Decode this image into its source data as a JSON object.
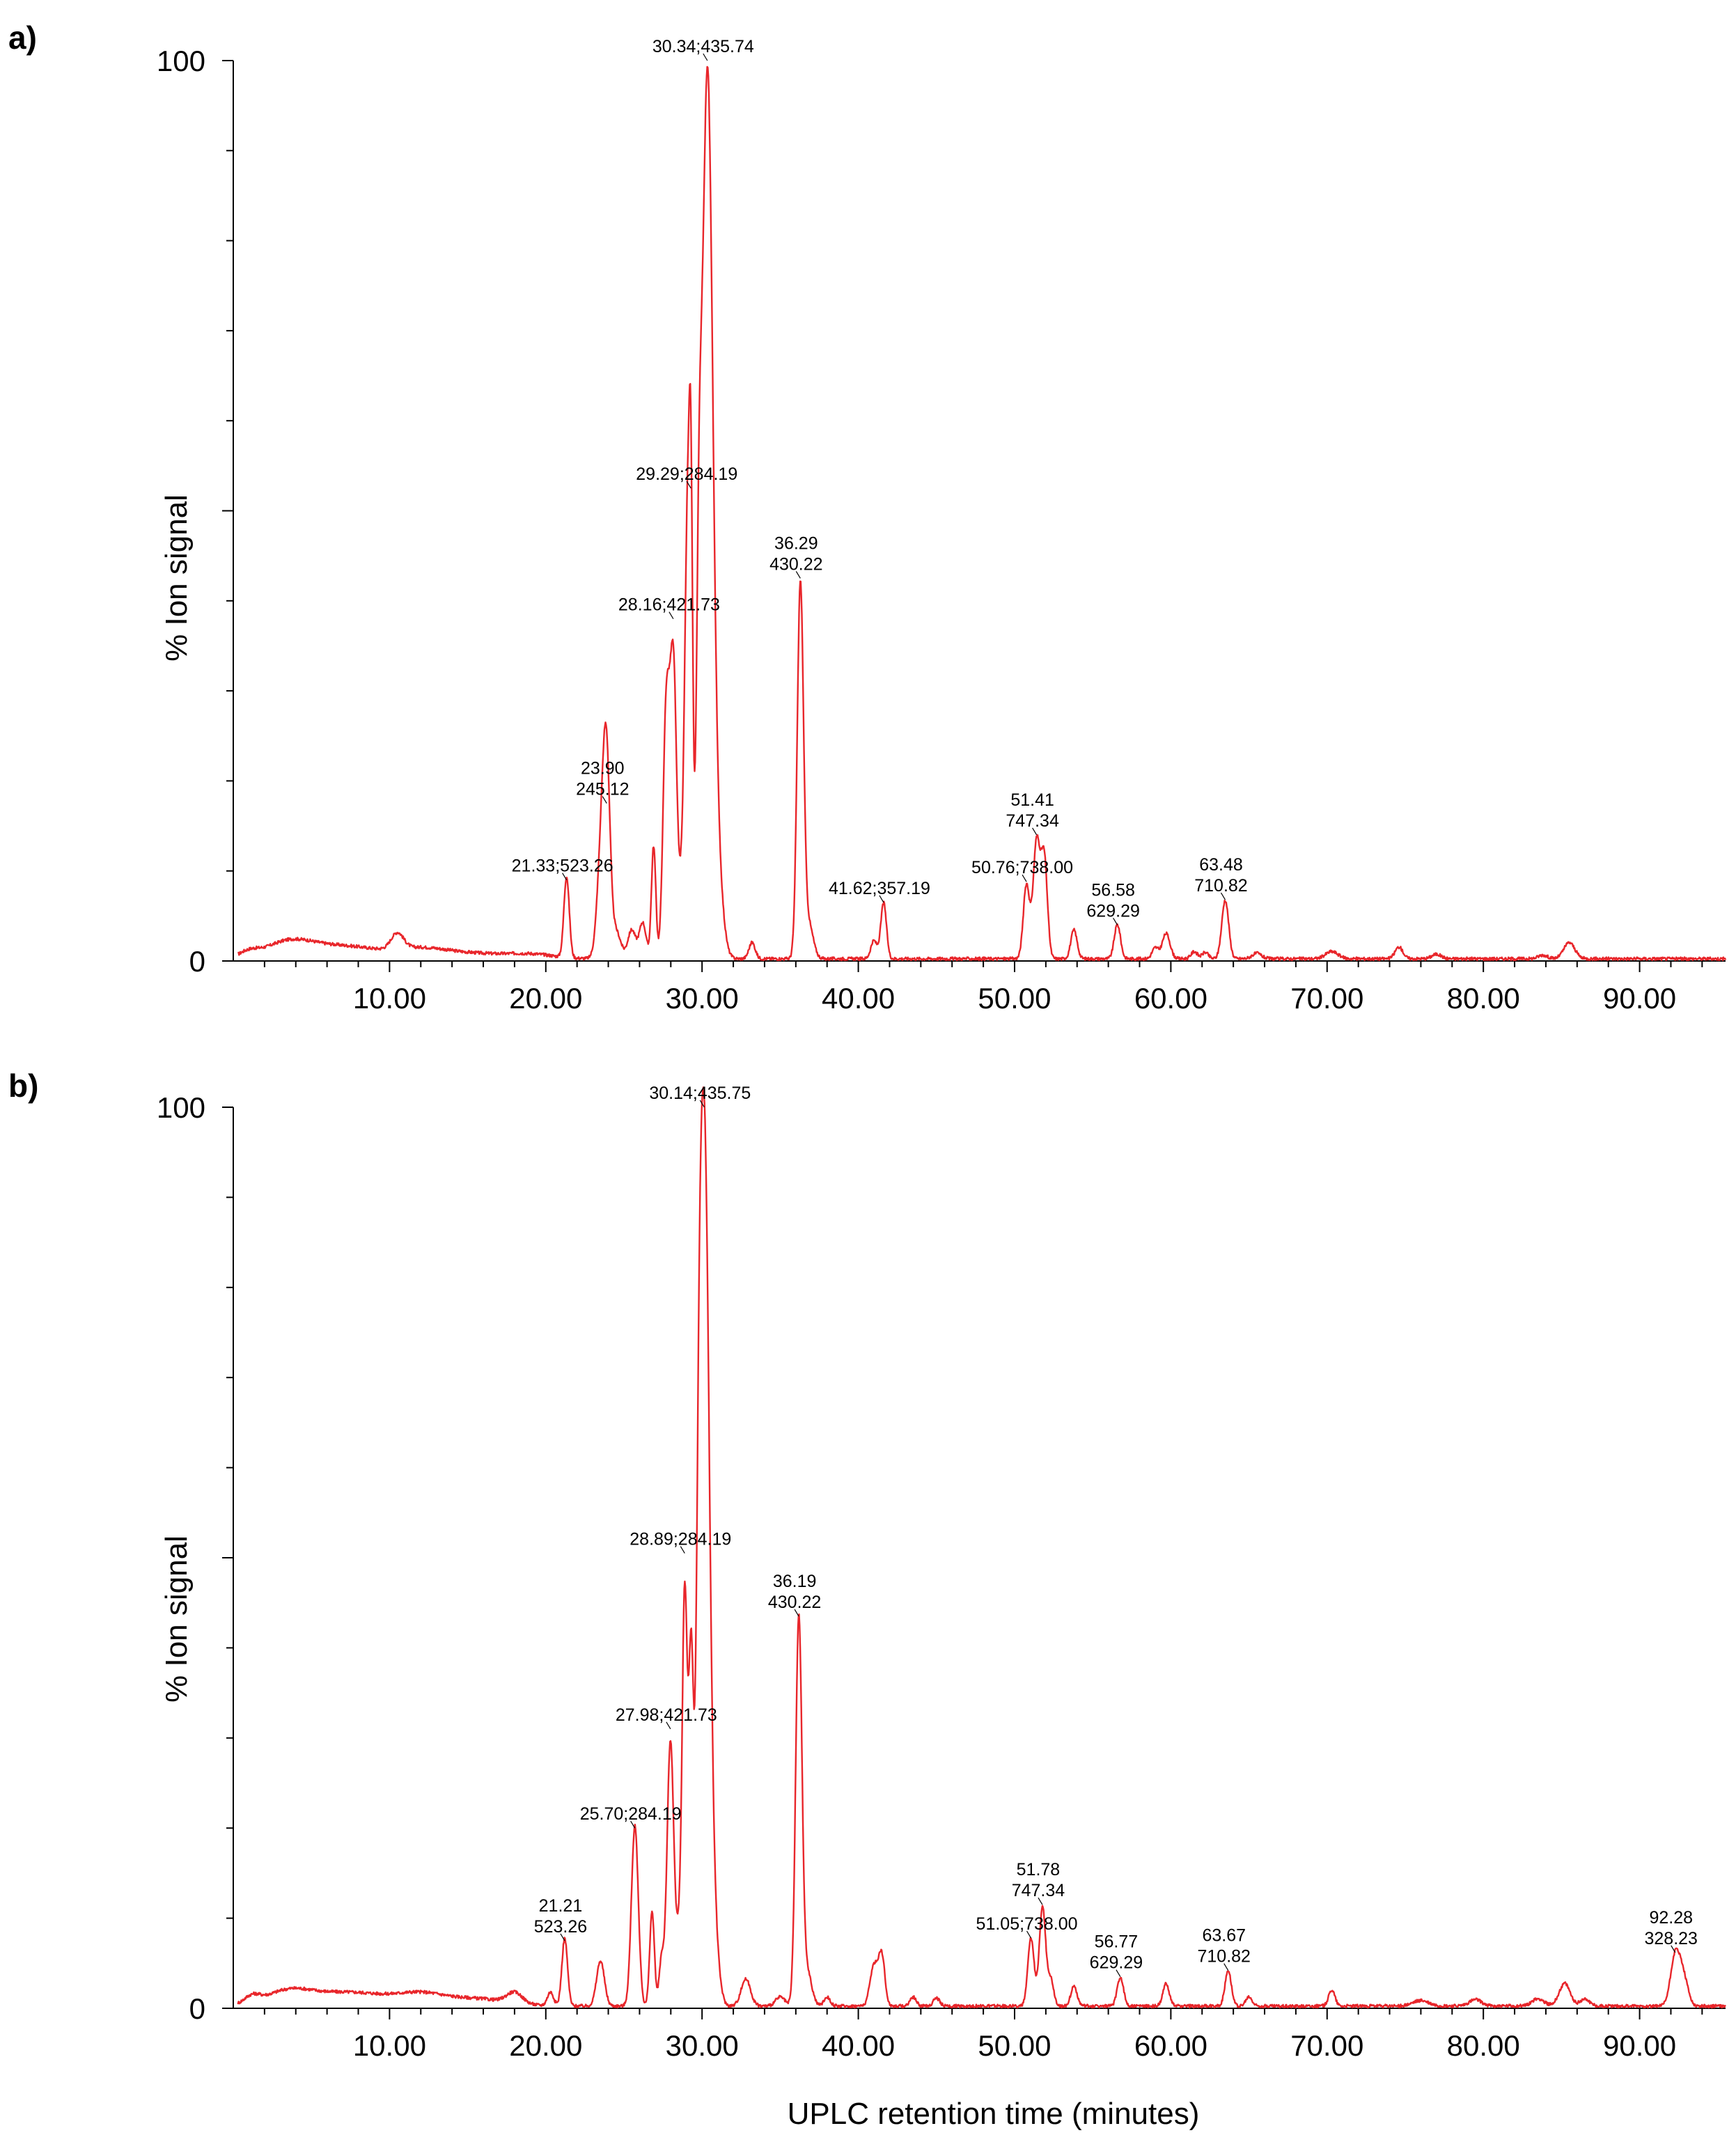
{
  "chart_data": [
    {
      "type": "line",
      "panel_label": "a)",
      "title": "",
      "xlabel": "",
      "ylabel": "% Ion signal",
      "xlim": [
        0,
        95.5
      ],
      "ylim": [
        0,
        100
      ],
      "x_ticks": [
        "10.00",
        "20.00",
        "30.00",
        "40.00",
        "50.00",
        "60.00",
        "70.00",
        "80.00",
        "90.00"
      ],
      "y_ticks": [
        "0",
        "100"
      ],
      "line_color": "#e8262b",
      "peaks": [
        {
          "x": 1.0,
          "y": 0.6,
          "w": 0.6
        },
        {
          "x": 3.5,
          "y": 1.6,
          "w": 1.5
        },
        {
          "x": 7.0,
          "y": 1.4,
          "w": 2.5
        },
        {
          "x": 10.5,
          "y": 1.8,
          "w": 0.4
        },
        {
          "x": 12.0,
          "y": 0.9,
          "w": 1.5
        },
        {
          "x": 15.0,
          "y": 0.6,
          "w": 2.0
        },
        {
          "x": 19.0,
          "y": 0.5,
          "w": 1.5
        },
        {
          "x": 21.33,
          "y": 9.0,
          "w": 0.17
        },
        {
          "x": 23.6,
          "y": 13.0,
          "w": 0.28
        },
        {
          "x": 23.9,
          "y": 17.5,
          "w": 0.22
        },
        {
          "x": 24.5,
          "y": 3.0,
          "w": 0.3
        },
        {
          "x": 25.5,
          "y": 3.2,
          "w": 0.25
        },
        {
          "x": 26.2,
          "y": 4.0,
          "w": 0.22
        },
        {
          "x": 26.9,
          "y": 12.5,
          "w": 0.14
        },
        {
          "x": 27.7,
          "y": 26.5,
          "w": 0.2
        },
        {
          "x": 28.16,
          "y": 33.0,
          "w": 0.22
        },
        {
          "x": 28.7,
          "y": 7.0,
          "w": 0.15
        },
        {
          "x": 29.05,
          "y": 46.0,
          "w": 0.17
        },
        {
          "x": 29.29,
          "y": 42.0,
          "w": 0.12
        },
        {
          "x": 29.8,
          "y": 30.0,
          "w": 0.17
        },
        {
          "x": 30.34,
          "y": 97.5,
          "w": 0.34
        },
        {
          "x": 31.0,
          "y": 8.0,
          "w": 0.35
        },
        {
          "x": 33.2,
          "y": 1.8,
          "w": 0.2
        },
        {
          "x": 36.29,
          "y": 41.0,
          "w": 0.2
        },
        {
          "x": 36.8,
          "y": 4.0,
          "w": 0.3
        },
        {
          "x": 41.0,
          "y": 2.0,
          "w": 0.2
        },
        {
          "x": 41.62,
          "y": 6.2,
          "w": 0.18
        },
        {
          "x": 50.76,
          "y": 8.2,
          "w": 0.2
        },
        {
          "x": 51.41,
          "y": 13.0,
          "w": 0.22
        },
        {
          "x": 51.9,
          "y": 11.0,
          "w": 0.2
        },
        {
          "x": 53.8,
          "y": 3.2,
          "w": 0.2
        },
        {
          "x": 56.58,
          "y": 3.8,
          "w": 0.2
        },
        {
          "x": 59.0,
          "y": 1.2,
          "w": 0.2
        },
        {
          "x": 59.7,
          "y": 2.8,
          "w": 0.25
        },
        {
          "x": 61.5,
          "y": 0.8,
          "w": 0.2
        },
        {
          "x": 62.2,
          "y": 0.7,
          "w": 0.2
        },
        {
          "x": 63.48,
          "y": 6.5,
          "w": 0.22
        },
        {
          "x": 65.5,
          "y": 0.6,
          "w": 0.3
        },
        {
          "x": 70.3,
          "y": 0.8,
          "w": 0.4
        },
        {
          "x": 74.6,
          "y": 1.3,
          "w": 0.25
        },
        {
          "x": 77.0,
          "y": 0.5,
          "w": 0.3
        },
        {
          "x": 83.8,
          "y": 0.4,
          "w": 0.3
        },
        {
          "x": 85.5,
          "y": 1.8,
          "w": 0.35
        }
      ],
      "annotations": [
        {
          "lines": [
            "21.33;523.26"
          ],
          "x": 21.33,
          "peak_y": 9.0
        },
        {
          "lines": [
            "23.90",
            "245.12"
          ],
          "x": 23.9,
          "peak_y": 17.5
        },
        {
          "lines": [
            "28.16;421.73"
          ],
          "x": 28.16,
          "peak_y": 38.0
        },
        {
          "lines": [
            "29.29;284.19"
          ],
          "x": 29.29,
          "peak_y": 52.5
        },
        {
          "lines": [
            "30.34;435.74"
          ],
          "x": 30.34,
          "peak_y": 100
        },
        {
          "lines": [
            "36.29",
            "430.22"
          ],
          "x": 36.29,
          "peak_y": 42.5
        },
        {
          "lines": [
            "41.62;357.19"
          ],
          "x": 41.62,
          "peak_y": 6.5
        },
        {
          "lines": [
            "50.76;738.00"
          ],
          "x": 50.76,
          "peak_y": 8.8
        },
        {
          "lines": [
            "51.41",
            "747.34"
          ],
          "x": 51.41,
          "peak_y": 14.0
        },
        {
          "lines": [
            "56.58",
            "629.29"
          ],
          "x": 56.58,
          "peak_y": 4.0
        },
        {
          "lines": [
            "63.48",
            "710.82"
          ],
          "x": 63.48,
          "peak_y": 6.8
        }
      ]
    },
    {
      "type": "line",
      "panel_label": "b)",
      "title": "",
      "xlabel": "UPLC retention time (minutes)",
      "ylabel": "% Ion signal",
      "xlim": [
        0,
        95.5
      ],
      "ylim": [
        0,
        100
      ],
      "x_ticks": [
        "10.00",
        "20.00",
        "30.00",
        "40.00",
        "50.00",
        "60.00",
        "70.00",
        "80.00",
        "90.00"
      ],
      "y_ticks": [
        "0",
        "100"
      ],
      "line_color": "#e8262b",
      "peaks": [
        {
          "x": 1.2,
          "y": 0.8,
          "w": 0.5
        },
        {
          "x": 3.5,
          "y": 1.5,
          "w": 1.5
        },
        {
          "x": 7.5,
          "y": 1.5,
          "w": 2.5
        },
        {
          "x": 12.0,
          "y": 1.1,
          "w": 1.5
        },
        {
          "x": 15.5,
          "y": 0.8,
          "w": 2.0
        },
        {
          "x": 18.0,
          "y": 1.2,
          "w": 0.5
        },
        {
          "x": 20.3,
          "y": 1.5,
          "w": 0.2
        },
        {
          "x": 21.21,
          "y": 7.5,
          "w": 0.18
        },
        {
          "x": 23.5,
          "y": 5.0,
          "w": 0.25
        },
        {
          "x": 25.7,
          "y": 20.0,
          "w": 0.22
        },
        {
          "x": 26.8,
          "y": 10.5,
          "w": 0.15
        },
        {
          "x": 27.4,
          "y": 5.0,
          "w": 0.15
        },
        {
          "x": 27.98,
          "y": 29.5,
          "w": 0.22
        },
        {
          "x": 28.5,
          "y": 6.0,
          "w": 0.15
        },
        {
          "x": 28.89,
          "y": 46.0,
          "w": 0.17
        },
        {
          "x": 29.3,
          "y": 36.0,
          "w": 0.15
        },
        {
          "x": 29.8,
          "y": 24.0,
          "w": 0.17
        },
        {
          "x": 30.14,
          "y": 97.0,
          "w": 0.32
        },
        {
          "x": 30.8,
          "y": 6.0,
          "w": 0.3
        },
        {
          "x": 32.8,
          "y": 3.0,
          "w": 0.3
        },
        {
          "x": 35.0,
          "y": 1.0,
          "w": 0.3
        },
        {
          "x": 36.19,
          "y": 42.5,
          "w": 0.2
        },
        {
          "x": 36.7,
          "y": 4.0,
          "w": 0.3
        },
        {
          "x": 38.0,
          "y": 1.0,
          "w": 0.2
        },
        {
          "x": 41.0,
          "y": 4.5,
          "w": 0.25
        },
        {
          "x": 41.5,
          "y": 5.5,
          "w": 0.2
        },
        {
          "x": 43.5,
          "y": 1.0,
          "w": 0.2
        },
        {
          "x": 45.0,
          "y": 0.9,
          "w": 0.2
        },
        {
          "x": 51.05,
          "y": 7.5,
          "w": 0.2
        },
        {
          "x": 51.78,
          "y": 11.0,
          "w": 0.2
        },
        {
          "x": 52.3,
          "y": 3.0,
          "w": 0.2
        },
        {
          "x": 53.8,
          "y": 2.2,
          "w": 0.2
        },
        {
          "x": 56.77,
          "y": 3.2,
          "w": 0.2
        },
        {
          "x": 59.7,
          "y": 2.5,
          "w": 0.2
        },
        {
          "x": 63.67,
          "y": 4.0,
          "w": 0.2
        },
        {
          "x": 65.0,
          "y": 1.0,
          "w": 0.2
        },
        {
          "x": 70.3,
          "y": 1.8,
          "w": 0.2
        },
        {
          "x": 76.0,
          "y": 0.6,
          "w": 0.5
        },
        {
          "x": 79.5,
          "y": 0.7,
          "w": 0.4
        },
        {
          "x": 83.5,
          "y": 0.8,
          "w": 0.4
        },
        {
          "x": 85.2,
          "y": 2.5,
          "w": 0.35
        },
        {
          "x": 86.5,
          "y": 0.8,
          "w": 0.3
        },
        {
          "x": 92.28,
          "y": 5.5,
          "w": 0.3
        },
        {
          "x": 92.8,
          "y": 3.0,
          "w": 0.3
        }
      ],
      "annotations": [
        {
          "lines": [
            "21.21",
            "523.26"
          ],
          "x": 21.21,
          "peak_y": 7.5
        },
        {
          "lines": [
            "25.70;284.19"
          ],
          "x": 25.7,
          "peak_y": 20.0
        },
        {
          "lines": [
            "27.98;421.73"
          ],
          "x": 27.98,
          "peak_y": 31.0
        },
        {
          "lines": [
            "28.89;284.19"
          ],
          "x": 28.89,
          "peak_y": 50.5
        },
        {
          "lines": [
            "30.14;435.75"
          ],
          "x": 30.14,
          "peak_y": 100
        },
        {
          "lines": [
            "36.19",
            "430.22"
          ],
          "x": 36.19,
          "peak_y": 43.5
        },
        {
          "lines": [
            "51.05;738.00"
          ],
          "x": 51.05,
          "peak_y": 7.8
        },
        {
          "lines": [
            "51.78",
            "747.34"
          ],
          "x": 51.78,
          "peak_y": 11.5
        },
        {
          "lines": [
            "56.77",
            "629.29"
          ],
          "x": 56.77,
          "peak_y": 3.5
        },
        {
          "lines": [
            "63.67",
            "710.82"
          ],
          "x": 63.67,
          "peak_y": 4.2
        },
        {
          "lines": [
            "92.28",
            "328.23"
          ],
          "x": 92.28,
          "peak_y": 6.2
        }
      ]
    }
  ]
}
